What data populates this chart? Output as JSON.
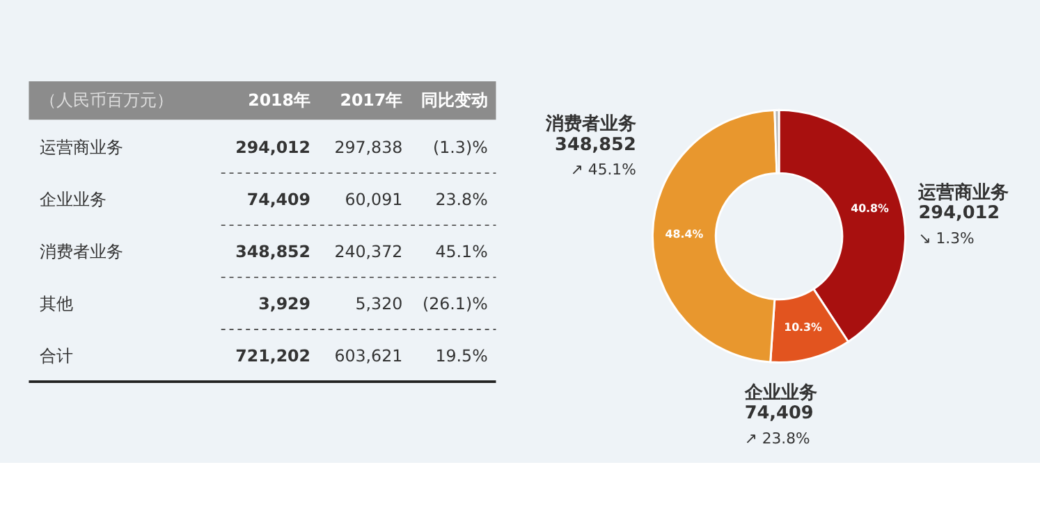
{
  "chart_data": [
    {
      "type": "other",
      "title": "（人民币百万元）",
      "categories": [
        "运营商业务",
        "企业业务",
        "消费者业务",
        "其他",
        "合计"
      ],
      "series": [
        {
          "name": "2018年",
          "values": [
            294012,
            74409,
            348852,
            3929,
            721202
          ],
          "value_labels": [
            "294,012",
            "74,409",
            "348,852",
            "3,929",
            "721,202"
          ]
        },
        {
          "name": "2017年",
          "values": [
            297838,
            60091,
            240372,
            5320,
            603621
          ],
          "value_labels": [
            "297,838",
            "60,091",
            "240,372",
            "5,320",
            "603,621"
          ]
        },
        {
          "name": "同比变动",
          "values": [
            -1.3,
            23.8,
            45.1,
            -26.1,
            19.5
          ],
          "value_labels": [
            "(1.3)%",
            "23.8%",
            "45.1%",
            "(26.1)%",
            "19.5%"
          ]
        }
      ]
    },
    {
      "type": "donut",
      "categories": [
        "运营商业务",
        "企业业务",
        "消费者业务",
        null
      ],
      "values": [
        294012,
        74409,
        348852,
        3929
      ],
      "value_labels": [
        "294,012",
        "74,409",
        "348,852",
        null
      ],
      "colors": [
        "#a8100f",
        "#e2541f",
        "#e8972e",
        "#b5b5b5"
      ],
      "annotations": [
        "40.8%",
        "10.3%",
        "48.4%",
        "↘ 1.3%",
        "↗ 23.8%",
        "↗ 45.1%"
      ]
    }
  ]
}
